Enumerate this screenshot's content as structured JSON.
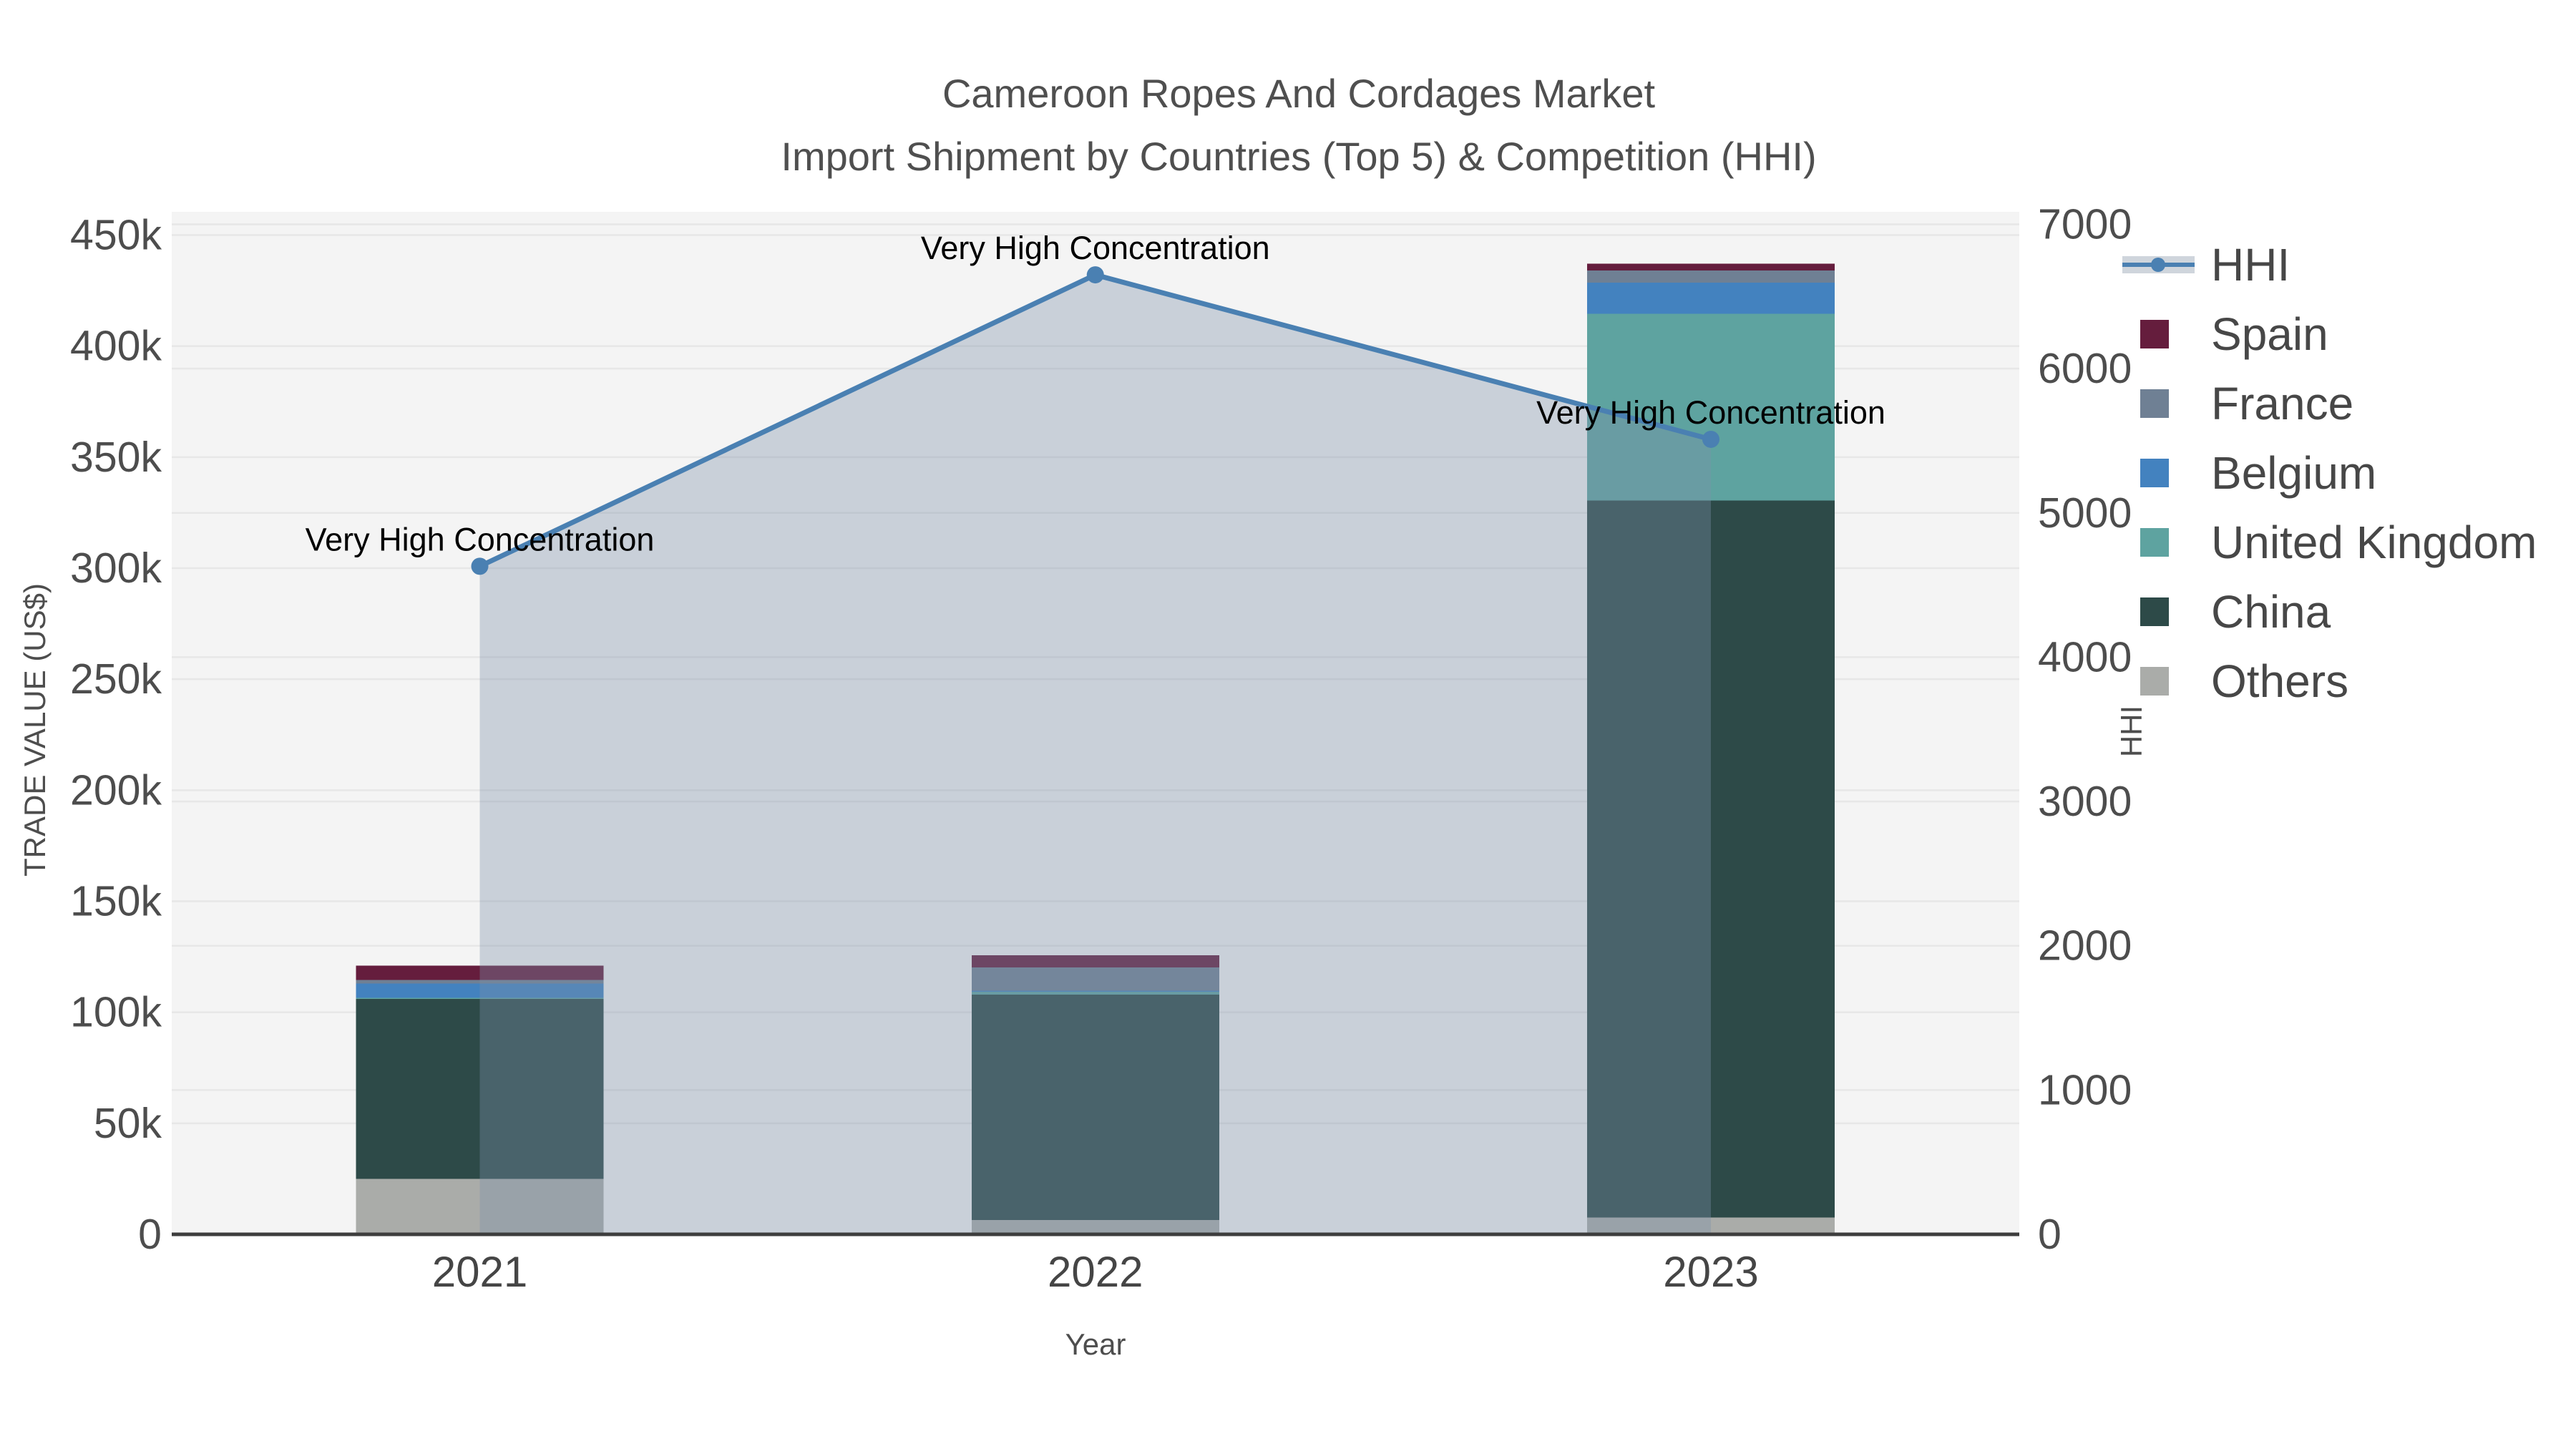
{
  "title": "Cameroon Ropes And Cordages Market",
  "subtitle": "Import Shipment by Countries (Top 5) & Competition (HHI)",
  "colors": {
    "plot_background": "#f4f4f4",
    "gridline": "#e7e7e7",
    "axis_line": "#3d3d3d",
    "hhi_line": "#4a80b2",
    "hhi_area_fill": "rgba(126,143,168,0.36)",
    "hhi_legend_band": "#cfd5dc",
    "annotation_text": "#000000"
  },
  "chart_data": {
    "type": "stacked-bar + line (dual y-axis)",
    "title": "Cameroon Ropes And Cordages Market",
    "subtitle": "Import Shipment by Countries (Top 5) & Competition (HHI)",
    "categories": [
      "2021",
      "2022",
      "2023"
    ],
    "xlabel": "Year",
    "y_left": {
      "label": "TRADE VALUE (US$)",
      "tick_labels": [
        "0",
        "50k",
        "100k",
        "150k",
        "200k",
        "250k",
        "300k",
        "350k",
        "400k",
        "450k"
      ],
      "tick_values": [
        0,
        50000,
        100000,
        150000,
        200000,
        250000,
        300000,
        350000,
        400000,
        450000
      ],
      "range": [
        0,
        450000
      ],
      "grid": true
    },
    "y_right": {
      "label": "HHI",
      "tick_labels": [
        "0",
        "1000",
        "2000",
        "3000",
        "4000",
        "5000",
        "6000",
        "7000"
      ],
      "tick_values": [
        0,
        1000,
        2000,
        3000,
        4000,
        5000,
        6000,
        7000
      ],
      "range": [
        0,
        7000
      ],
      "grid": true
    },
    "series": [
      {
        "name": "Others",
        "color": "#aaaca9",
        "values": [
          25000,
          6500,
          7500
        ]
      },
      {
        "name": "China",
        "color": "#2d4a48",
        "values": [
          81000,
          101500,
          323000
        ]
      },
      {
        "name": "United Kingdom",
        "color": "#5ea3a0",
        "values": [
          500,
          1200,
          84000
        ]
      },
      {
        "name": "Belgium",
        "color": "#4382bf",
        "values": [
          6500,
          500,
          14000
        ]
      },
      {
        "name": "France",
        "color": "#6f8094",
        "values": [
          1500,
          10500,
          5600
        ]
      },
      {
        "name": "Spain",
        "color": "#651d3d",
        "values": [
          6500,
          5400,
          3000
        ]
      }
    ],
    "bar_totals": [
      121000,
      125600,
      437100
    ],
    "line": {
      "name": "HHI",
      "axis": "right",
      "color": "#4a80b2",
      "area_fill": "rgba(126,143,168,0.36)",
      "values": [
        4630,
        6650,
        5510
      ]
    },
    "annotations": [
      {
        "x": "2021",
        "text": "Very High Concentration"
      },
      {
        "x": "2022",
        "text": "Very High Concentration"
      },
      {
        "x": "2023",
        "text": "Very High Concentration"
      }
    ],
    "legend": {
      "position": "right",
      "items": [
        "HHI",
        "Spain",
        "France",
        "Belgium",
        "United Kingdom",
        "China",
        "Others"
      ]
    }
  }
}
